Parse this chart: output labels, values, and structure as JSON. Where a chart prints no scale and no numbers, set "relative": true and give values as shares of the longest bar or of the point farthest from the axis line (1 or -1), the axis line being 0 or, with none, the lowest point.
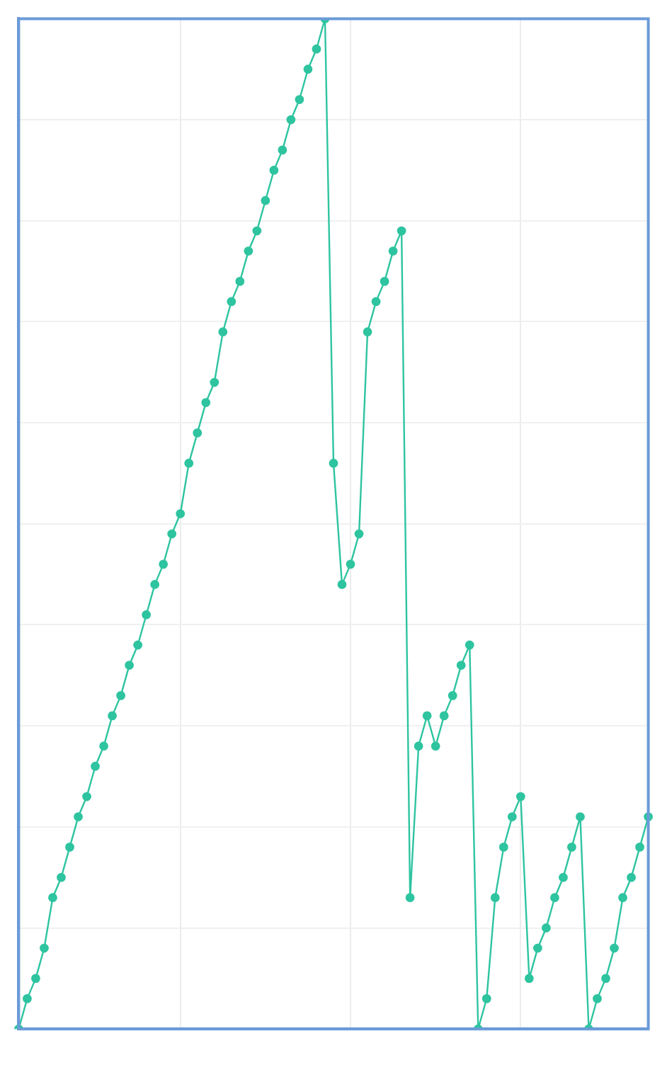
{
  "chart_data": {
    "type": "line",
    "relative": true,
    "grid": true,
    "legend": false,
    "marker": "circle",
    "line_style": "solid",
    "categories": [
      null,
      null,
      null,
      null,
      null,
      null,
      null,
      null,
      null,
      null,
      null,
      null,
      null,
      null,
      null,
      null,
      null,
      null,
      null,
      null,
      null,
      null,
      null,
      null,
      null,
      null,
      null,
      null,
      null,
      null,
      null,
      null,
      null,
      null,
      null,
      null,
      null,
      null,
      null,
      null,
      null,
      null,
      null,
      null,
      null,
      null,
      null,
      null,
      null,
      null,
      null,
      null,
      null,
      null,
      null,
      null,
      null,
      null,
      null,
      null,
      null,
      null,
      null,
      null,
      null,
      null,
      null,
      null,
      null,
      null,
      null,
      null,
      null,
      null,
      null
    ],
    "series": [
      {
        "color": "#2ec4a0",
        "values": [
          0,
          0.03,
          0.05,
          0.08,
          0.13,
          0.15,
          0.18,
          0.21,
          0.23,
          0.26,
          0.28,
          0.31,
          0.33,
          0.36,
          0.38,
          0.41,
          0.44,
          0.46,
          0.49,
          0.51,
          0.56,
          0.59,
          0.62,
          0.64,
          0.69,
          0.72,
          0.74,
          0.77,
          0.79,
          0.82,
          0.85,
          0.87,
          0.9,
          0.92,
          0.95,
          0.97,
          1,
          0.56,
          0.44,
          0.46,
          0.49,
          0.69,
          0.72,
          0.74,
          0.77,
          0.79,
          0.13,
          0.28,
          0.31,
          0.28,
          0.31,
          0.33,
          0.36,
          0.38,
          0,
          0.03,
          0.13,
          0.18,
          0.21,
          0.23,
          0.05,
          0.08,
          0.1,
          0.13,
          0.15,
          0.18,
          0.21,
          0,
          0.03,
          0.05,
          0.08,
          0.13,
          0.15,
          0.18,
          0.21
        ]
      }
    ]
  }
}
